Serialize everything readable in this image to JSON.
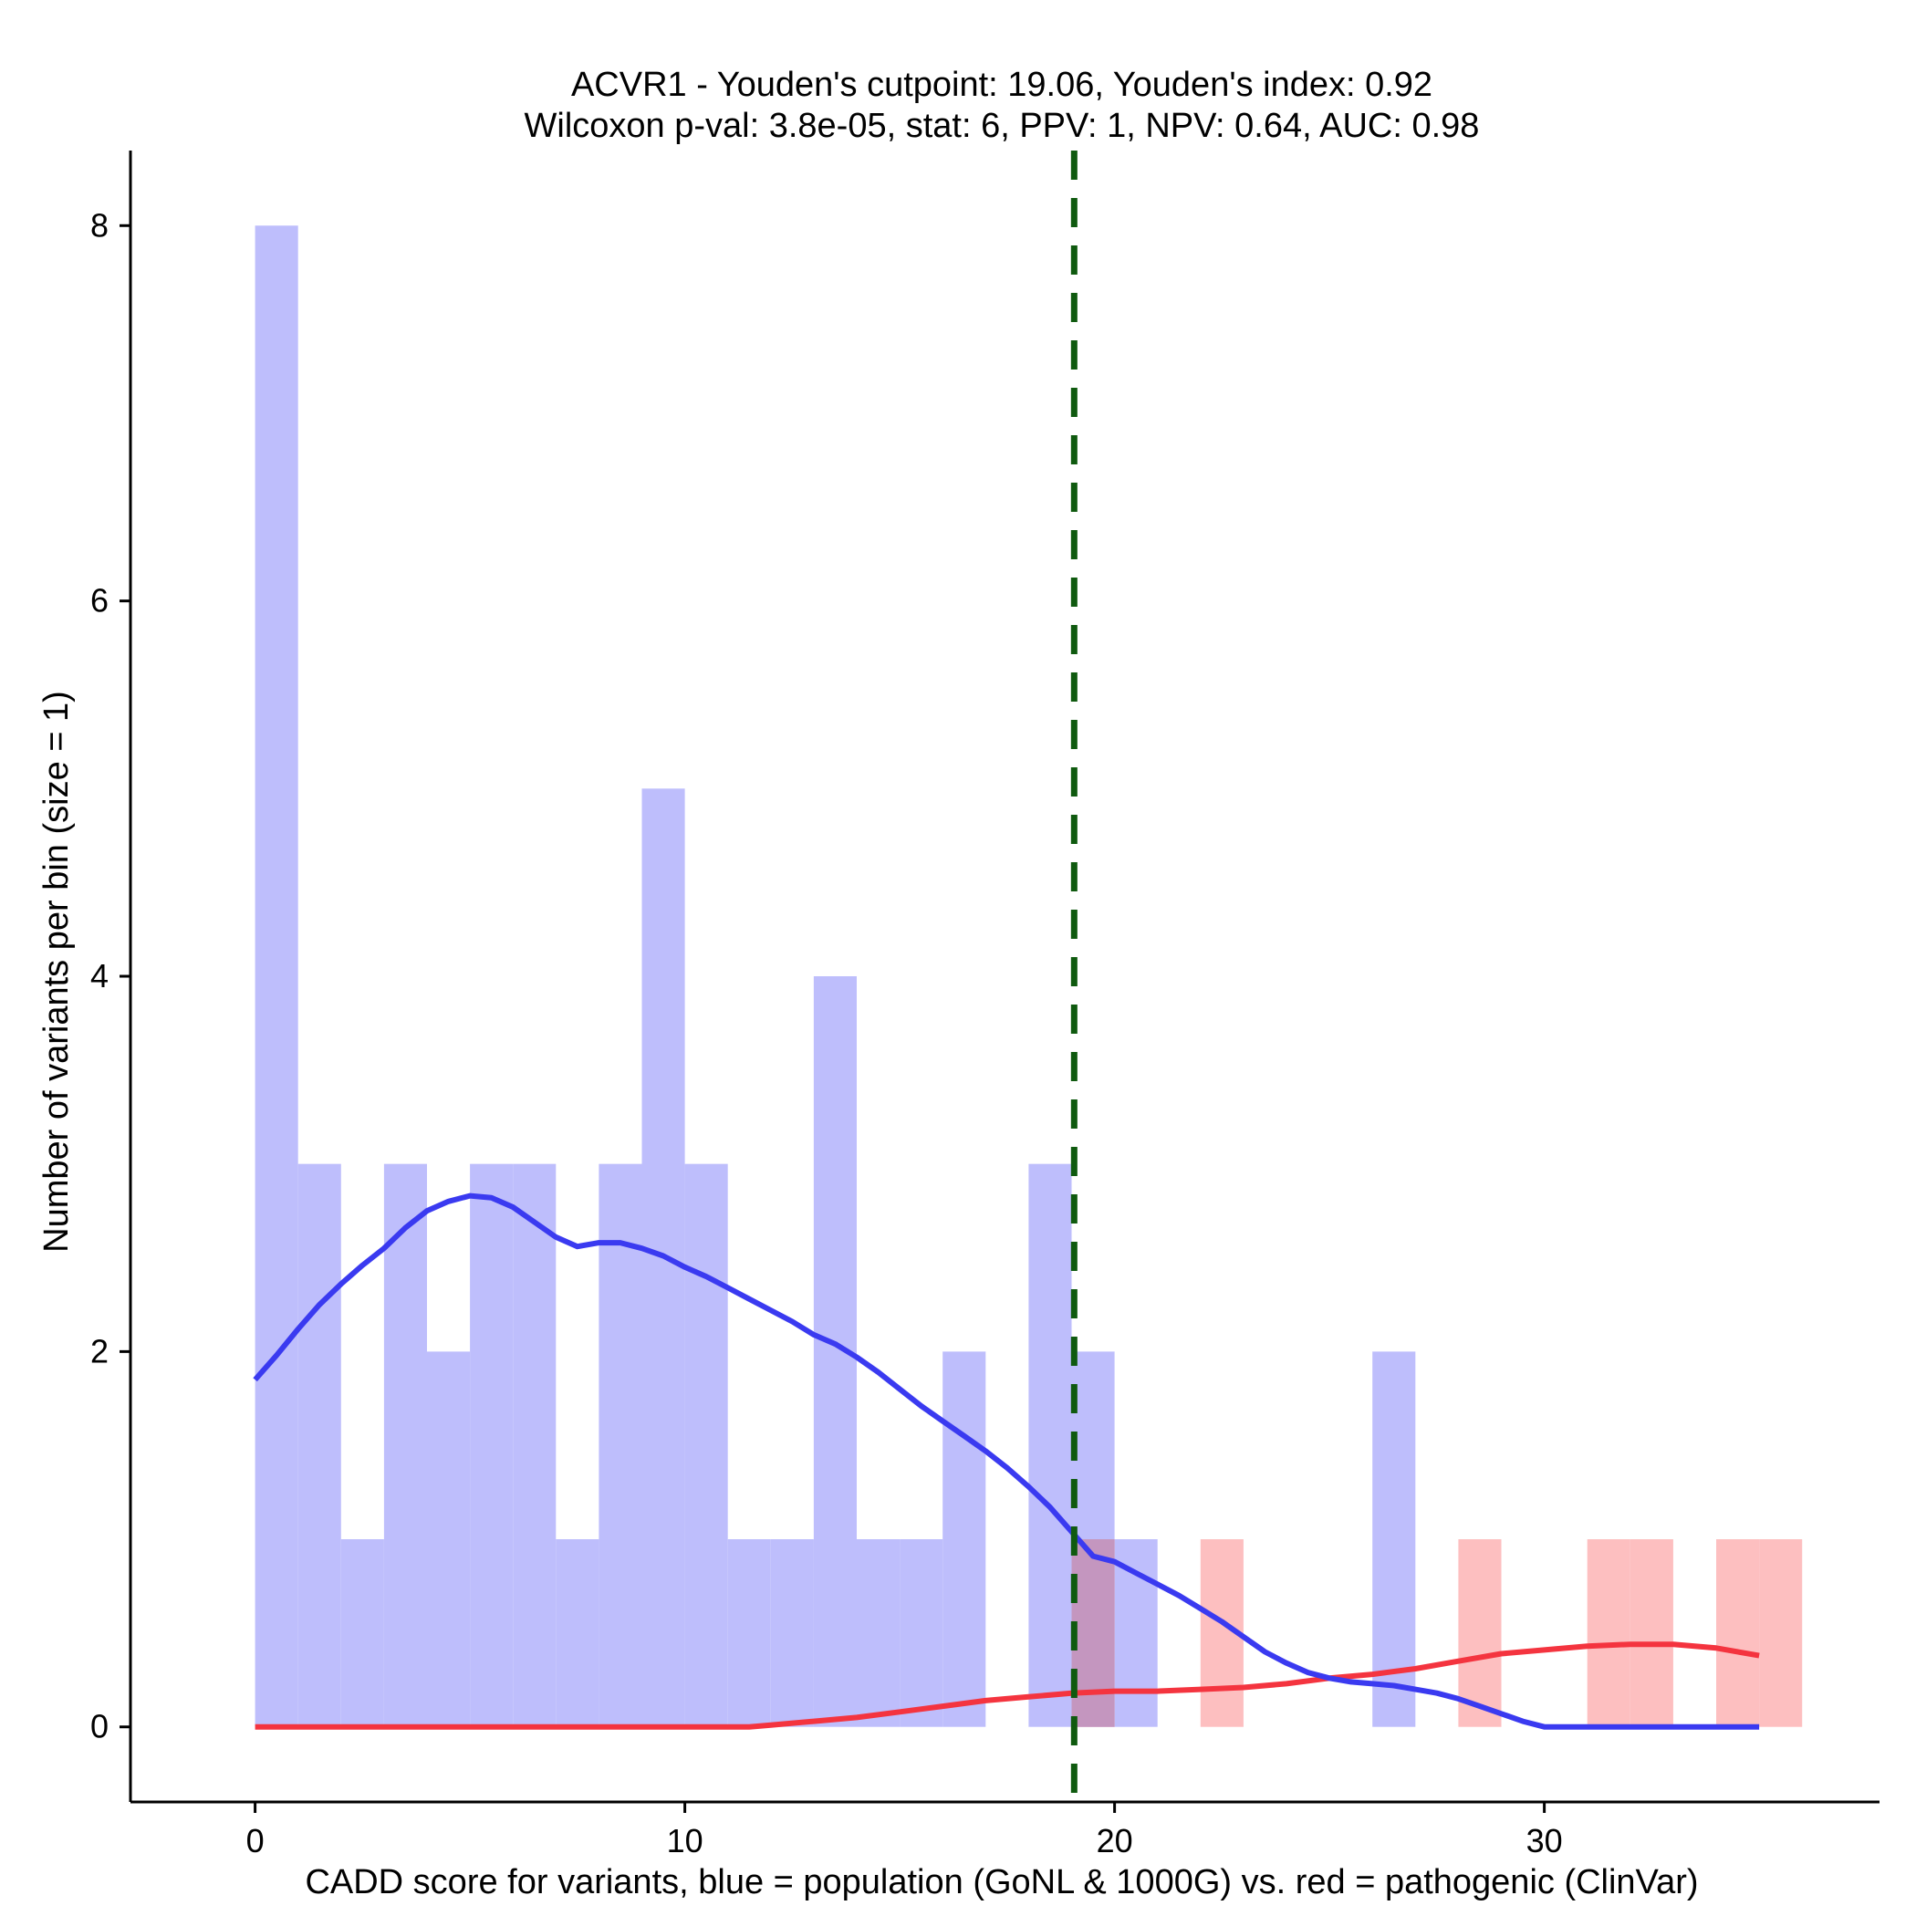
{
  "chart_data": {
    "type": "histogram",
    "title_line1": "ACVR1 - Youden's cutpoint: 19.06, Youden's index: 0.92",
    "title_line2": "Wilcoxon p-val: 3.8e-05, stat: 6, PPV: 1, NPV: 0.64, AUC: 0.98",
    "xlabel": "CADD score for variants, blue = population (GoNL & 1000G) vs. red = pathogenic (ClinVar)",
    "ylabel": "Number of variants per bin (size = 1)",
    "xlim": [
      -2.9,
      37.8
    ],
    "ylim": [
      -0.4,
      8.4
    ],
    "x_ticks": [
      0,
      10,
      20,
      30
    ],
    "y_ticks": [
      0,
      2,
      4,
      6,
      8
    ],
    "bin_width": 1,
    "cutpoint": 19.06,
    "colors": {
      "population_bar": "#bebefc",
      "pathogenic_bar": "#fdbfc0",
      "overlap_bar": "#c496bf",
      "population_line": "#3a3af0",
      "pathogenic_line": "#f4343f",
      "cutpoint_line": "#0f5a0f"
    },
    "series": [
      {
        "name": "population (GoNL & 1000G)",
        "bins": [
          {
            "start": 0,
            "count": 8
          },
          {
            "start": 1,
            "count": 3
          },
          {
            "start": 2,
            "count": 1
          },
          {
            "start": 3,
            "count": 3
          },
          {
            "start": 4,
            "count": 2
          },
          {
            "start": 5,
            "count": 3
          },
          {
            "start": 6,
            "count": 3
          },
          {
            "start": 7,
            "count": 1
          },
          {
            "start": 8,
            "count": 3
          },
          {
            "start": 9,
            "count": 5
          },
          {
            "start": 10,
            "count": 3
          },
          {
            "start": 11,
            "count": 1
          },
          {
            "start": 12,
            "count": 1
          },
          {
            "start": 13,
            "count": 4
          },
          {
            "start": 14,
            "count": 1
          },
          {
            "start": 15,
            "count": 1
          },
          {
            "start": 16,
            "count": 2
          },
          {
            "start": 18,
            "count": 3
          },
          {
            "start": 19,
            "count": 2
          },
          {
            "start": 20,
            "count": 1
          },
          {
            "start": 26,
            "count": 2
          }
        ],
        "density_curve": {
          "x": [
            0,
            0.5,
            1,
            1.5,
            2,
            2.5,
            3,
            3.5,
            4,
            4.5,
            5,
            5.5,
            6,
            6.5,
            7,
            7.5,
            8,
            8.5,
            9,
            9.5,
            10,
            10.5,
            11,
            11.5,
            12,
            12.5,
            13,
            13.5,
            14,
            14.5,
            15,
            15.5,
            16,
            16.5,
            17,
            17.5,
            18,
            18.5,
            19,
            19.5,
            20,
            20.5,
            21,
            21.5,
            22,
            22.5,
            23,
            23.5,
            24,
            24.5,
            25,
            25.5,
            26,
            26.5,
            27,
            27.5,
            28,
            28.5,
            29,
            29.5,
            30,
            30.5,
            31,
            31.5,
            32,
            32.5,
            33,
            34,
            35
          ],
          "y": [
            1.85,
            1.98,
            2.12,
            2.25,
            2.36,
            2.46,
            2.55,
            2.66,
            2.75,
            2.8,
            2.83,
            2.82,
            2.77,
            2.69,
            2.61,
            2.56,
            2.58,
            2.58,
            2.55,
            2.51,
            2.45,
            2.4,
            2.34,
            2.28,
            2.22,
            2.16,
            2.09,
            2.04,
            1.97,
            1.89,
            1.8,
            1.71,
            1.63,
            1.55,
            1.47,
            1.38,
            1.28,
            1.17,
            1.04,
            0.91,
            0.88,
            0.82,
            0.76,
            0.7,
            0.63,
            0.56,
            0.48,
            0.4,
            0.34,
            0.29,
            0.26,
            0.24,
            0.23,
            0.22,
            0.2,
            0.18,
            0.15,
            0.11,
            0.07,
            0.03,
            0.0,
            0.0,
            0.0,
            0.0,
            0.0,
            0.0,
            0.0,
            0.0,
            0.0
          ]
        }
      },
      {
        "name": "pathogenic (ClinVar)",
        "bins": [
          {
            "start": 19,
            "count": 1
          },
          {
            "start": 22,
            "count": 1
          },
          {
            "start": 28,
            "count": 1
          },
          {
            "start": 31,
            "count": 1
          },
          {
            "start": 32,
            "count": 1
          },
          {
            "start": 34,
            "count": 1
          },
          {
            "start": 35,
            "count": 1
          }
        ],
        "density_curve": {
          "x": [
            0,
            5,
            10,
            11.5,
            12,
            13,
            14,
            15,
            16,
            17,
            18,
            19,
            20,
            21,
            22,
            23,
            24,
            25,
            26,
            27,
            28,
            29,
            30,
            31,
            32,
            33,
            34,
            35
          ],
          "y": [
            0.0,
            0.0,
            0.0,
            0.0,
            0.01,
            0.03,
            0.05,
            0.08,
            0.11,
            0.14,
            0.16,
            0.18,
            0.19,
            0.19,
            0.2,
            0.21,
            0.23,
            0.26,
            0.28,
            0.31,
            0.35,
            0.39,
            0.41,
            0.43,
            0.44,
            0.44,
            0.42,
            0.38
          ]
        }
      }
    ]
  }
}
